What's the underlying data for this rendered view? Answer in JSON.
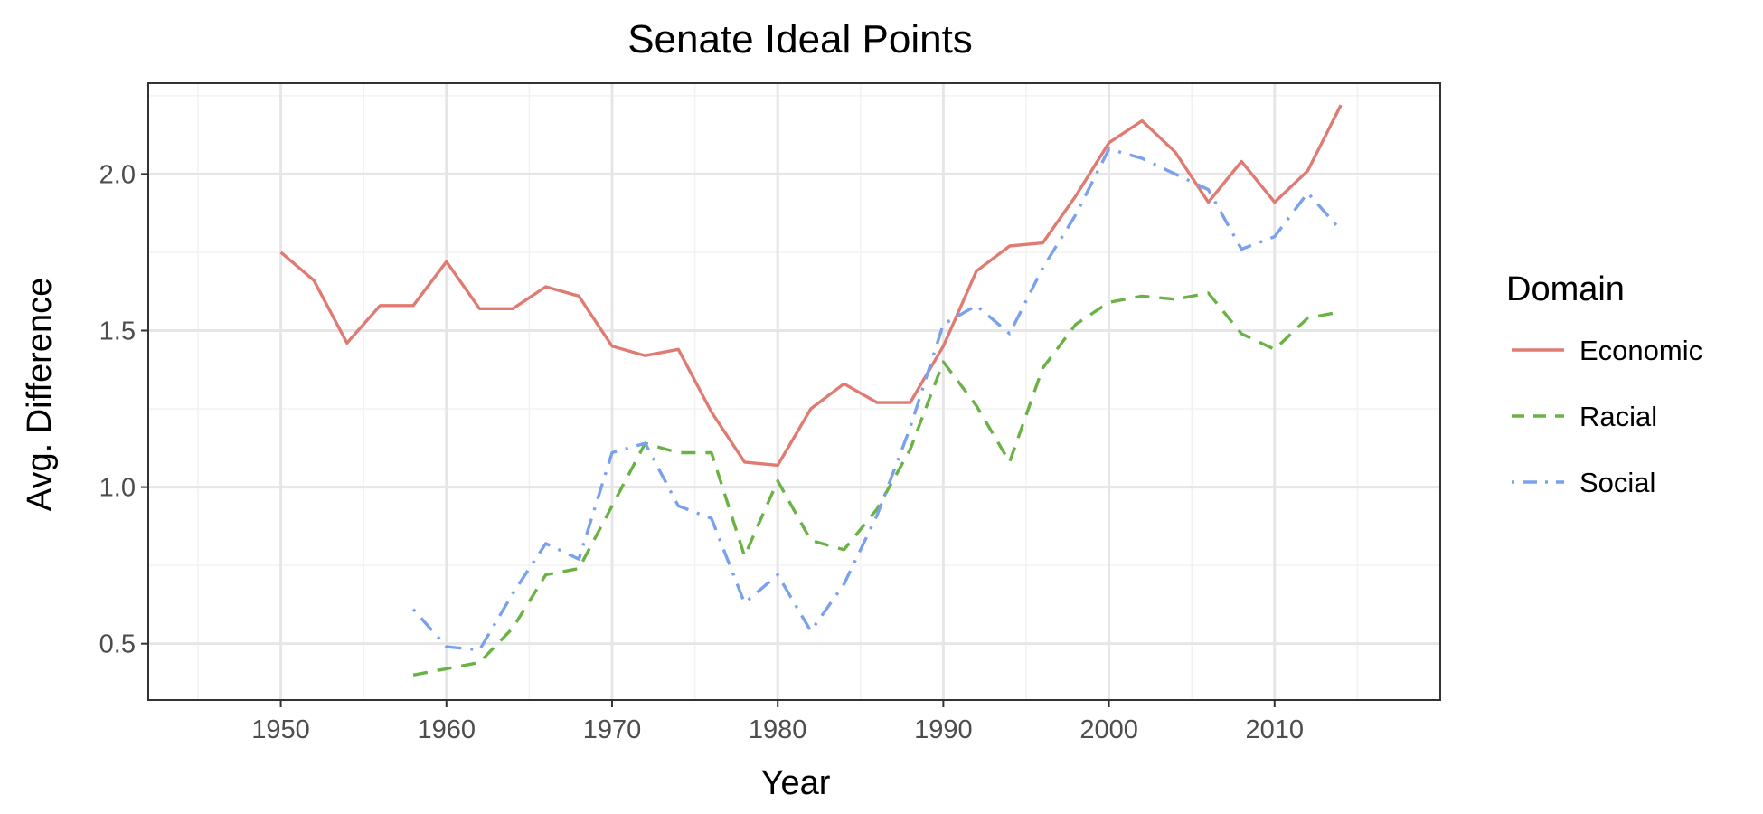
{
  "chart_data": {
    "type": "line",
    "title": "Senate Ideal Points",
    "xlabel": "Year",
    "ylabel": "Avg. Difference",
    "xlim": [
      1942,
      2020
    ],
    "ylim": [
      0.32,
      2.29
    ],
    "x_ticks": [
      1950,
      1960,
      1970,
      1980,
      1990,
      2000,
      2010
    ],
    "x_tick_labels": [
      "1950",
      "1960",
      "1970",
      "1980",
      "1990",
      "2000",
      "2010"
    ],
    "y_ticks": [
      0.5,
      1.0,
      1.5,
      2.0
    ],
    "y_tick_labels": [
      "0.5",
      "1.0",
      "1.5",
      "2.0"
    ],
    "grid": true,
    "legend": {
      "title": "Domain",
      "position": "right"
    },
    "series": [
      {
        "name": "Economic",
        "color": "#E07B73",
        "dash": "solid",
        "x": [
          1950,
          1952,
          1954,
          1956,
          1958,
          1960,
          1962,
          1964,
          1966,
          1968,
          1970,
          1972,
          1974,
          1976,
          1978,
          1980,
          1982,
          1984,
          1986,
          1988,
          1990,
          1992,
          1994,
          1996,
          1998,
          2000,
          2002,
          2004,
          2006,
          2008,
          2010,
          2012,
          2014
        ],
        "y": [
          1.75,
          1.66,
          1.46,
          1.58,
          1.58,
          1.72,
          1.57,
          1.57,
          1.64,
          1.61,
          1.45,
          1.42,
          1.44,
          1.24,
          1.08,
          1.07,
          1.25,
          1.33,
          1.27,
          1.27,
          1.45,
          1.69,
          1.77,
          1.78,
          1.93,
          2.1,
          2.17,
          2.07,
          1.91,
          2.04,
          1.91,
          2.01,
          2.22
        ]
      },
      {
        "name": "Racial",
        "color": "#6BB245",
        "dash": "dashed",
        "x": [
          1958,
          1960,
          1962,
          1964,
          1966,
          1968,
          1970,
          1972,
          1974,
          1976,
          1978,
          1980,
          1982,
          1984,
          1986,
          1988,
          1990,
          1992,
          1994,
          1996,
          1998,
          2000,
          2002,
          2004,
          2006,
          2008,
          2010,
          2012,
          2014
        ],
        "y": [
          0.4,
          0.42,
          0.44,
          0.55,
          0.72,
          0.74,
          0.94,
          1.14,
          1.11,
          1.11,
          0.78,
          1.02,
          0.83,
          0.8,
          0.93,
          1.12,
          1.4,
          1.26,
          1.08,
          1.38,
          1.52,
          1.59,
          1.61,
          1.6,
          1.62,
          1.49,
          1.44,
          1.54,
          1.56
        ]
      },
      {
        "name": "Social",
        "color": "#7AA1EE",
        "dash": "dotdash",
        "x": [
          1958,
          1960,
          1962,
          1964,
          1966,
          1968,
          1970,
          1972,
          1974,
          1976,
          1978,
          1980,
          1982,
          1984,
          1986,
          1988,
          1990,
          1992,
          1994,
          1996,
          1998,
          2000,
          2002,
          2004,
          2006,
          2008,
          2010,
          2012,
          2014
        ],
        "y": [
          0.61,
          0.49,
          0.48,
          0.66,
          0.82,
          0.77,
          1.11,
          1.14,
          0.94,
          0.9,
          0.63,
          0.72,
          0.54,
          0.69,
          0.91,
          1.19,
          1.52,
          1.58,
          1.49,
          1.7,
          1.87,
          2.08,
          2.05,
          2.0,
          1.95,
          1.76,
          1.8,
          1.94,
          1.82
        ]
      }
    ]
  }
}
